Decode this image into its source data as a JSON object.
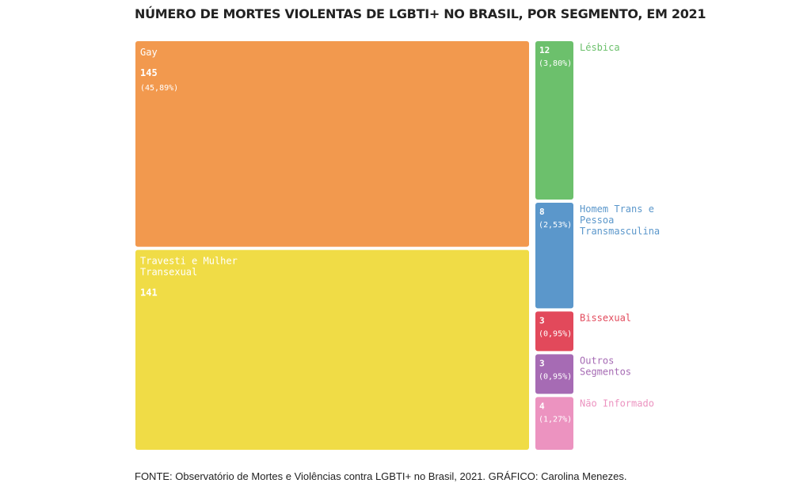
{
  "page": {
    "title": "NÚMERO DE MORTES VIOLENTAS DE LGBTI+ NO BRASIL, POR SEGMENTO, EM 2021",
    "source": "FONTE: Observatório de Mortes e Violências contra LGBTI+ no Brasil, 2021. GRÁFICO: Carolina Menezes."
  },
  "chart_data": {
    "type": "treemap",
    "title": "NÚMERO DE MORTES VIOLENTAS DE LGBTI+ NO BRASIL, POR SEGMENTO, EM 2021",
    "source": "FONTE: Observatório de Mortes e Violências contra LGBTI+ no Brasil, 2021. GRÁFICO: Carolina Menezes.",
    "series": [
      {
        "name": "Gay",
        "value": 145,
        "pct_label": "(45,89%)",
        "color": "#F2994E"
      },
      {
        "name": "Travesti e Mulher Transexual",
        "value": 141,
        "pct_label": "",
        "color": "#F0DC46"
      },
      {
        "name": "Lésbica",
        "value": 12,
        "pct_label": "(3,80%)",
        "color": "#6CC06C"
      },
      {
        "name": "Homem Trans e Pessoa Transmasculina",
        "value": 8,
        "pct_label": "(2,53%)",
        "color": "#5B97CB"
      },
      {
        "name": "Bissexual",
        "value": 3,
        "pct_label": "(0,95%)",
        "color": "#E2495B"
      },
      {
        "name": "Outros Segmentos",
        "value": 3,
        "pct_label": "(0,95%)",
        "color": "#A66BB4"
      },
      {
        "name": "Não Informado",
        "value": 4,
        "pct_label": "(1,27%)",
        "color": "#EC93C0"
      }
    ]
  }
}
